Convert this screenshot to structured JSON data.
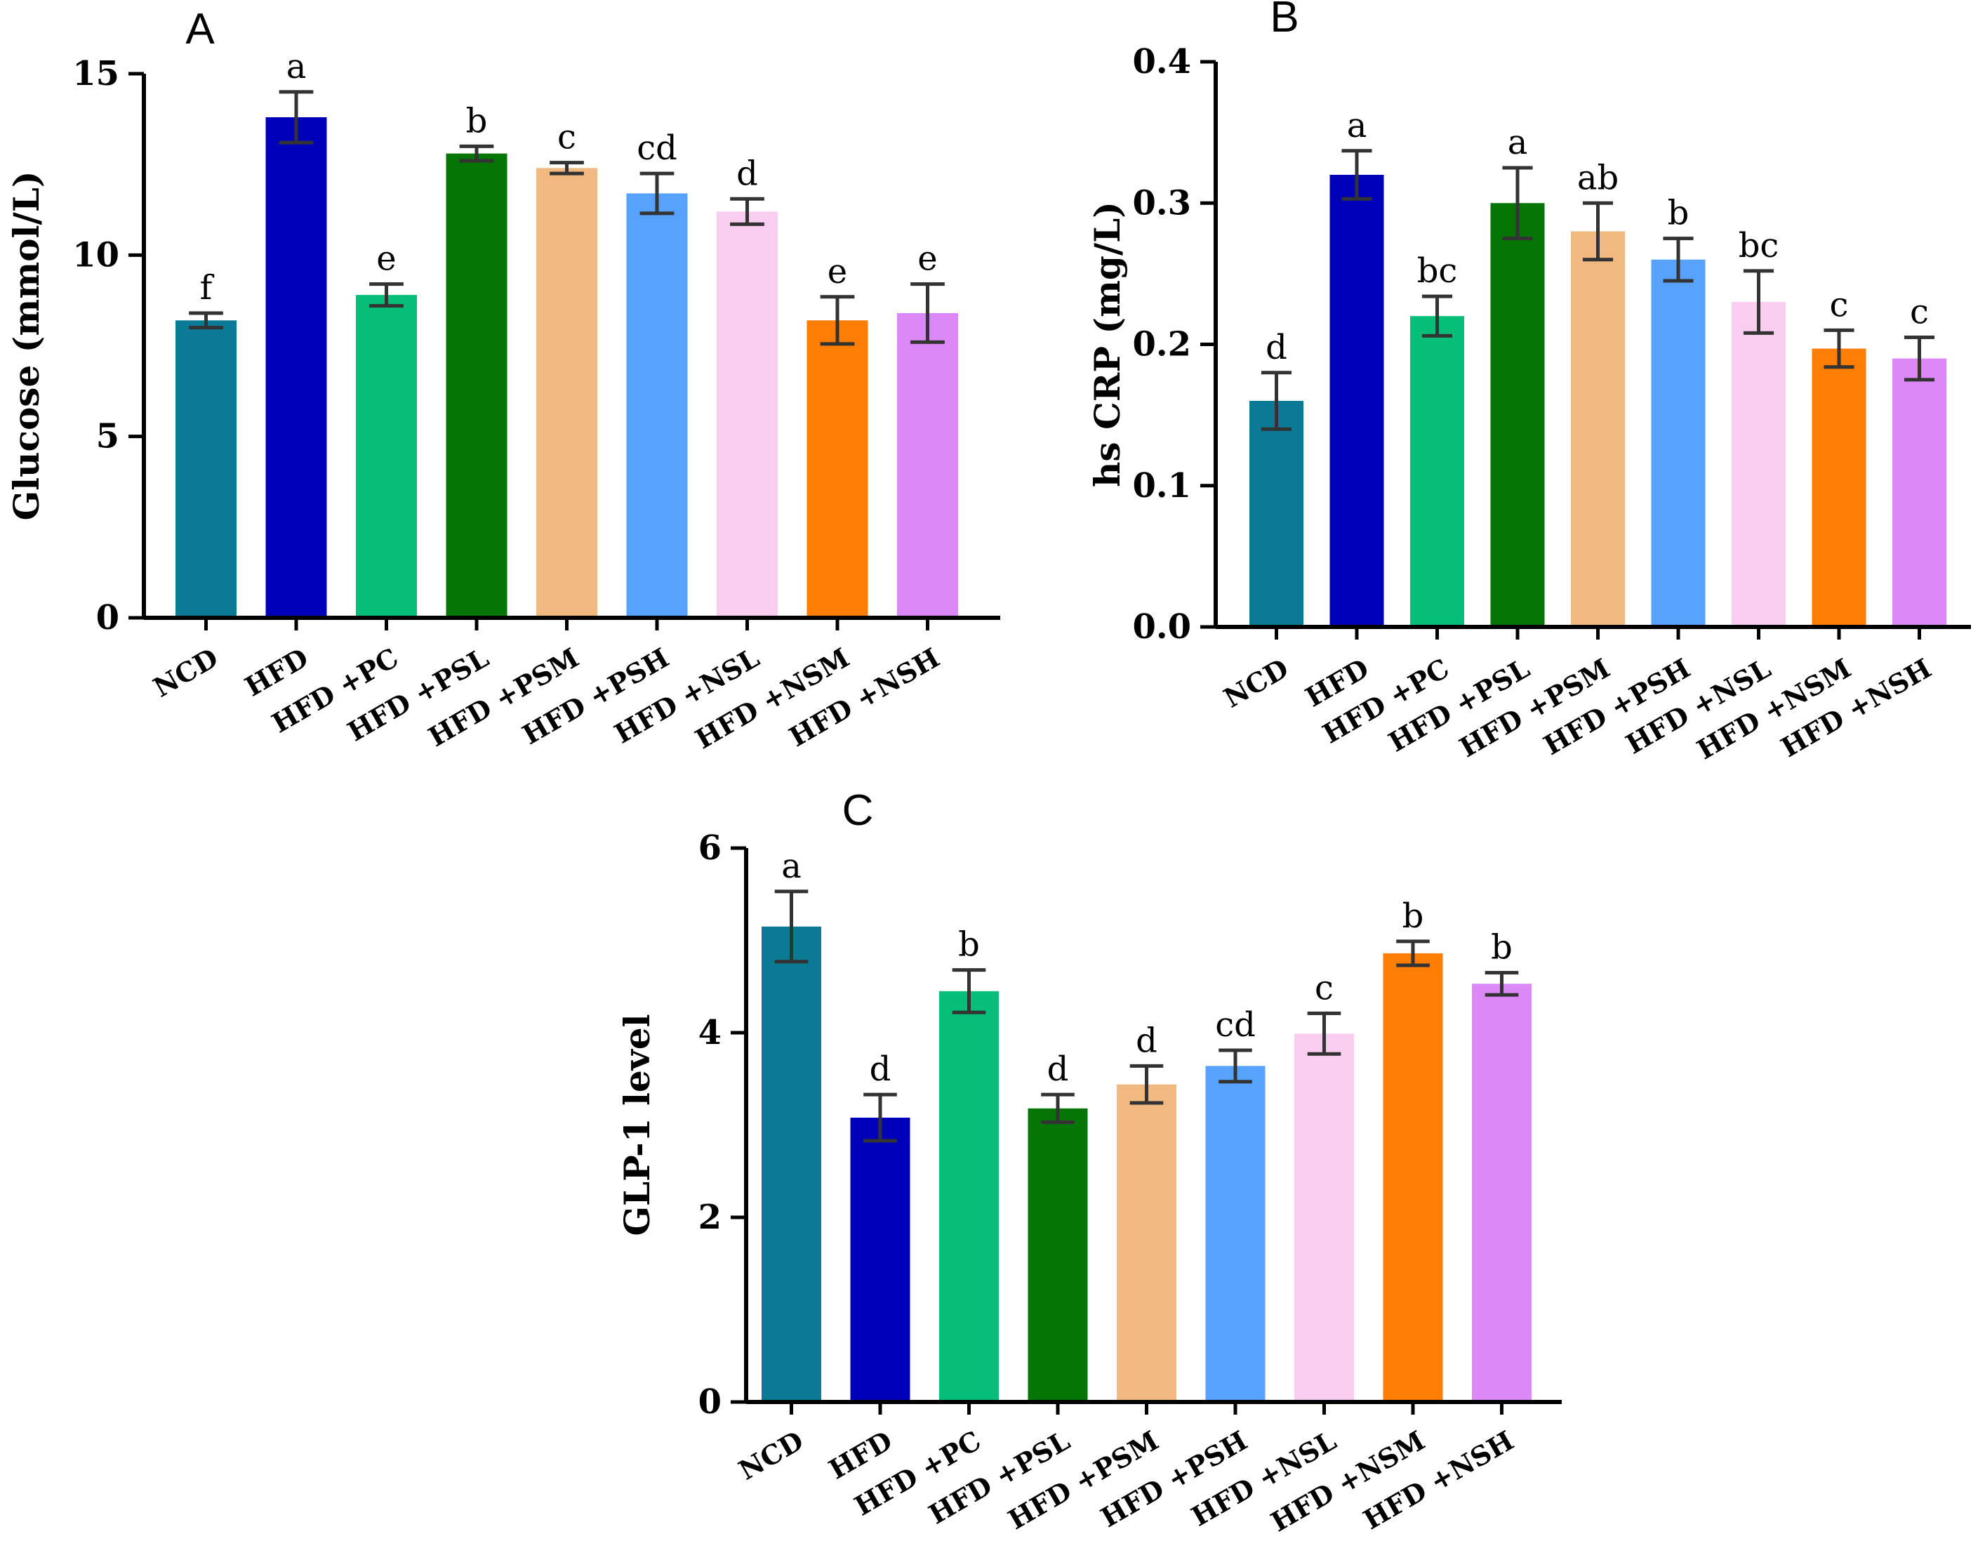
{
  "chart_data": [
    {
      "type": "bar",
      "panel_label": "A",
      "ylabel": "Glucose (mmol/L)",
      "ylim": [
        0,
        15
      ],
      "yticks": [
        0,
        5,
        10,
        15
      ],
      "categories": [
        "NCD",
        "HFD",
        "HFD +PC",
        "HFD +PSL",
        "HFD +PSM",
        "HFD +PSH",
        "HFD +NSL",
        "HFD +NSM",
        "HFD +NSH"
      ],
      "values": [
        8.2,
        13.8,
        8.9,
        12.8,
        12.4,
        11.7,
        11.2,
        8.2,
        8.4
      ],
      "errors": [
        0.2,
        0.7,
        0.3,
        0.2,
        0.15,
        0.55,
        0.35,
        0.65,
        0.8
      ],
      "significance": [
        "f",
        "a",
        "e",
        "b",
        "c",
        "cd",
        "d",
        "e",
        "e"
      ],
      "colors": [
        "#0b7a95",
        "#0000b8",
        "#06be77",
        "#057605",
        "#f1b880",
        "#57a2fc",
        "#f8cdef",
        "#fe7d04",
        "#dc89f7"
      ]
    },
    {
      "type": "bar",
      "panel_label": "B",
      "ylabel": "hs CRP (mg/L)",
      "ylim": [
        0,
        0.4
      ],
      "yticks": [
        0.0,
        0.1,
        0.2,
        0.3,
        0.4
      ],
      "ytick_labels": [
        "0.0",
        "0.1",
        "0.2",
        "0.3",
        "0.4"
      ],
      "categories": [
        "NCD",
        "HFD",
        "HFD +PC",
        "HFD +PSL",
        "HFD +PSM",
        "HFD +PSH",
        "HFD +NSL",
        "HFD +NSM",
        "HFD +NSH"
      ],
      "values": [
        0.16,
        0.32,
        0.22,
        0.3,
        0.28,
        0.26,
        0.23,
        0.197,
        0.19
      ],
      "errors": [
        0.02,
        0.017,
        0.014,
        0.025,
        0.02,
        0.015,
        0.022,
        0.013,
        0.015
      ],
      "significance": [
        "d",
        "a",
        "bc",
        "a",
        "ab",
        "b",
        "bc",
        "c",
        "c"
      ],
      "colors": [
        "#0b7a95",
        "#0000b8",
        "#06be77",
        "#057605",
        "#f1b880",
        "#57a2fc",
        "#f8cdef",
        "#fe7d04",
        "#dc89f7"
      ]
    },
    {
      "type": "bar",
      "panel_label": "C",
      "ylabel": "GLP-1 level",
      "ylim": [
        0,
        6
      ],
      "yticks": [
        0,
        2,
        4,
        6
      ],
      "categories": [
        "NCD",
        "HFD",
        "HFD +PC",
        "HFD +PSL",
        "HFD +PSM",
        "HFD +PSH",
        "HFD +NSL",
        "HFD +NSM",
        "HFD +NSH"
      ],
      "values": [
        5.15,
        3.08,
        4.45,
        3.18,
        3.44,
        3.64,
        3.99,
        4.86,
        4.53
      ],
      "errors": [
        0.38,
        0.25,
        0.23,
        0.15,
        0.2,
        0.17,
        0.22,
        0.13,
        0.12
      ],
      "significance": [
        "a",
        "d",
        "b",
        "d",
        "d",
        "cd",
        "c",
        "b",
        "b"
      ],
      "colors": [
        "#0b7a95",
        "#0000b8",
        "#06be77",
        "#057605",
        "#f1b880",
        "#57a2fc",
        "#f8cdef",
        "#fe7d04",
        "#dc89f7"
      ]
    }
  ]
}
